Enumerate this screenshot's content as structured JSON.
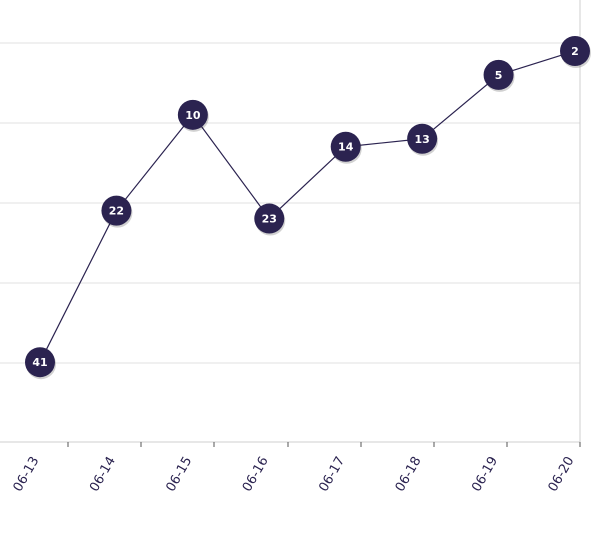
{
  "colors": {
    "series": "#2b2350",
    "marker_fill": "#2b2350",
    "marker_text": "#ffffff",
    "grid": "#e2e2e2"
  },
  "chart_data": {
    "type": "line",
    "title": "",
    "xlabel": "",
    "ylabel": "",
    "grid": true,
    "legend": "none",
    "y_axis": "reversed",
    "ylim": [
      1,
      51
    ],
    "categories": [
      "06-13",
      "06-14",
      "06-15",
      "06-16",
      "06-17",
      "06-18",
      "06-19",
      "06-20"
    ],
    "series": [
      {
        "values": [
          41,
          22,
          10,
          23,
          14,
          13,
          5,
          2
        ]
      }
    ]
  }
}
